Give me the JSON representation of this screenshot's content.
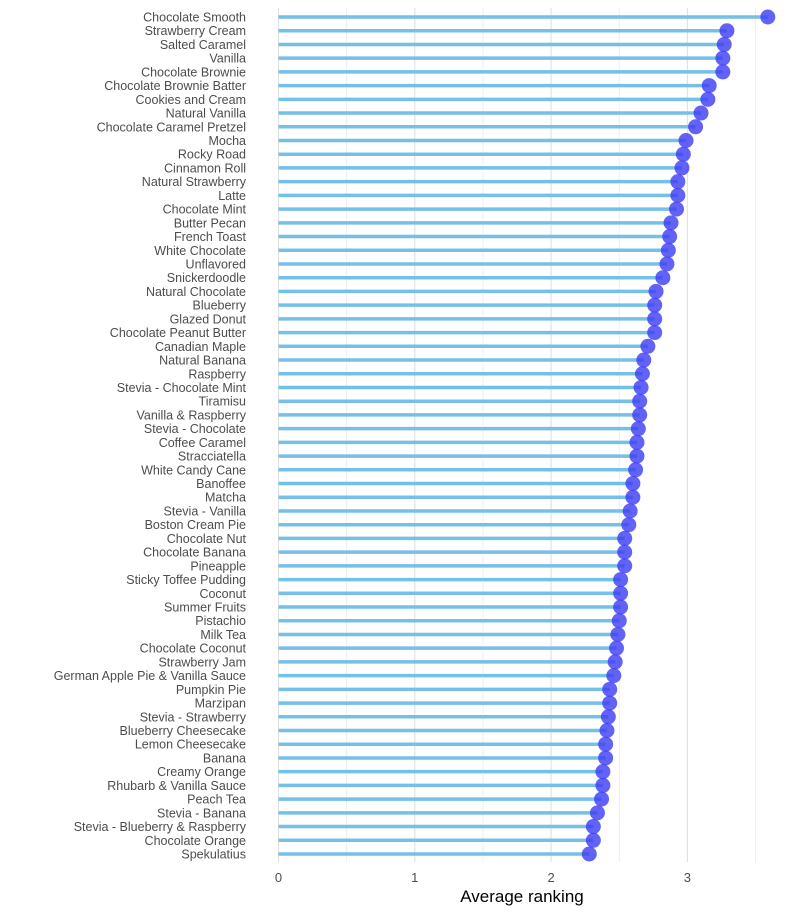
{
  "chart_data": {
    "type": "lollipop",
    "title": "",
    "xlabel": "Average ranking",
    "ylabel": "",
    "xlim": [
      0,
      3.7
    ],
    "x_ticks": [
      "0",
      "1",
      "2",
      "3"
    ],
    "grid": "vertical",
    "colors": {
      "stem": "#74c0e8",
      "point": "#3b3bf5",
      "grid": "#e5e5e5"
    },
    "categories": [
      "Chocolate Smooth",
      "Strawberry Cream",
      "Salted Caramel",
      "Vanilla",
      "Chocolate Brownie",
      "Chocolate Brownie Batter",
      "Cookies and Cream",
      "Natural Vanilla",
      "Chocolate Caramel Pretzel",
      "Mocha",
      "Rocky Road",
      "Cinnamon Roll",
      "Natural Strawberry",
      "Latte",
      "Chocolate Mint",
      "Butter Pecan",
      "French Toast",
      "White Chocolate",
      "Unflavored",
      "Snickerdoodle",
      "Natural Chocolate",
      "Blueberry",
      "Glazed Donut",
      "Chocolate Peanut Butter",
      "Canadian Maple",
      "Natural Banana",
      "Raspberry",
      "Stevia - Chocolate Mint",
      "Tiramisu",
      "Vanilla & Raspberry",
      "Stevia - Chocolate",
      "Coffee Caramel",
      "Stracciatella",
      "White Candy Cane",
      "Banoffee",
      "Matcha",
      "Stevia - Vanilla",
      "Boston Cream Pie",
      "Chocolate Nut",
      "Chocolate Banana",
      "Pineapple",
      "Sticky Toffee Pudding",
      "Coconut",
      "Summer Fruits",
      "Pistachio",
      "Milk Tea",
      "Chocolate Coconut",
      "Strawberry Jam",
      "German Apple Pie & Vanilla Sauce",
      "Pumpkin Pie",
      "Marzipan",
      "Stevia - Strawberry",
      "Blueberry Cheesecake",
      "Lemon Cheesecake",
      "Banana",
      "Creamy Orange",
      "Rhubarb & Vanilla Sauce",
      "Peach Tea",
      "Stevia - Banana",
      "Stevia - Blueberry & Raspberry",
      "Chocolate Orange",
      "Spekulatius"
    ],
    "values": [
      3.59,
      3.29,
      3.27,
      3.26,
      3.26,
      3.16,
      3.15,
      3.1,
      3.06,
      2.99,
      2.97,
      2.96,
      2.93,
      2.93,
      2.92,
      2.88,
      2.87,
      2.86,
      2.85,
      2.82,
      2.77,
      2.76,
      2.76,
      2.76,
      2.71,
      2.68,
      2.67,
      2.66,
      2.65,
      2.65,
      2.64,
      2.63,
      2.63,
      2.62,
      2.6,
      2.6,
      2.58,
      2.57,
      2.54,
      2.54,
      2.54,
      2.51,
      2.51,
      2.51,
      2.5,
      2.49,
      2.48,
      2.47,
      2.46,
      2.43,
      2.43,
      2.42,
      2.41,
      2.4,
      2.4,
      2.38,
      2.38,
      2.37,
      2.34,
      2.31,
      2.31,
      2.28
    ]
  }
}
